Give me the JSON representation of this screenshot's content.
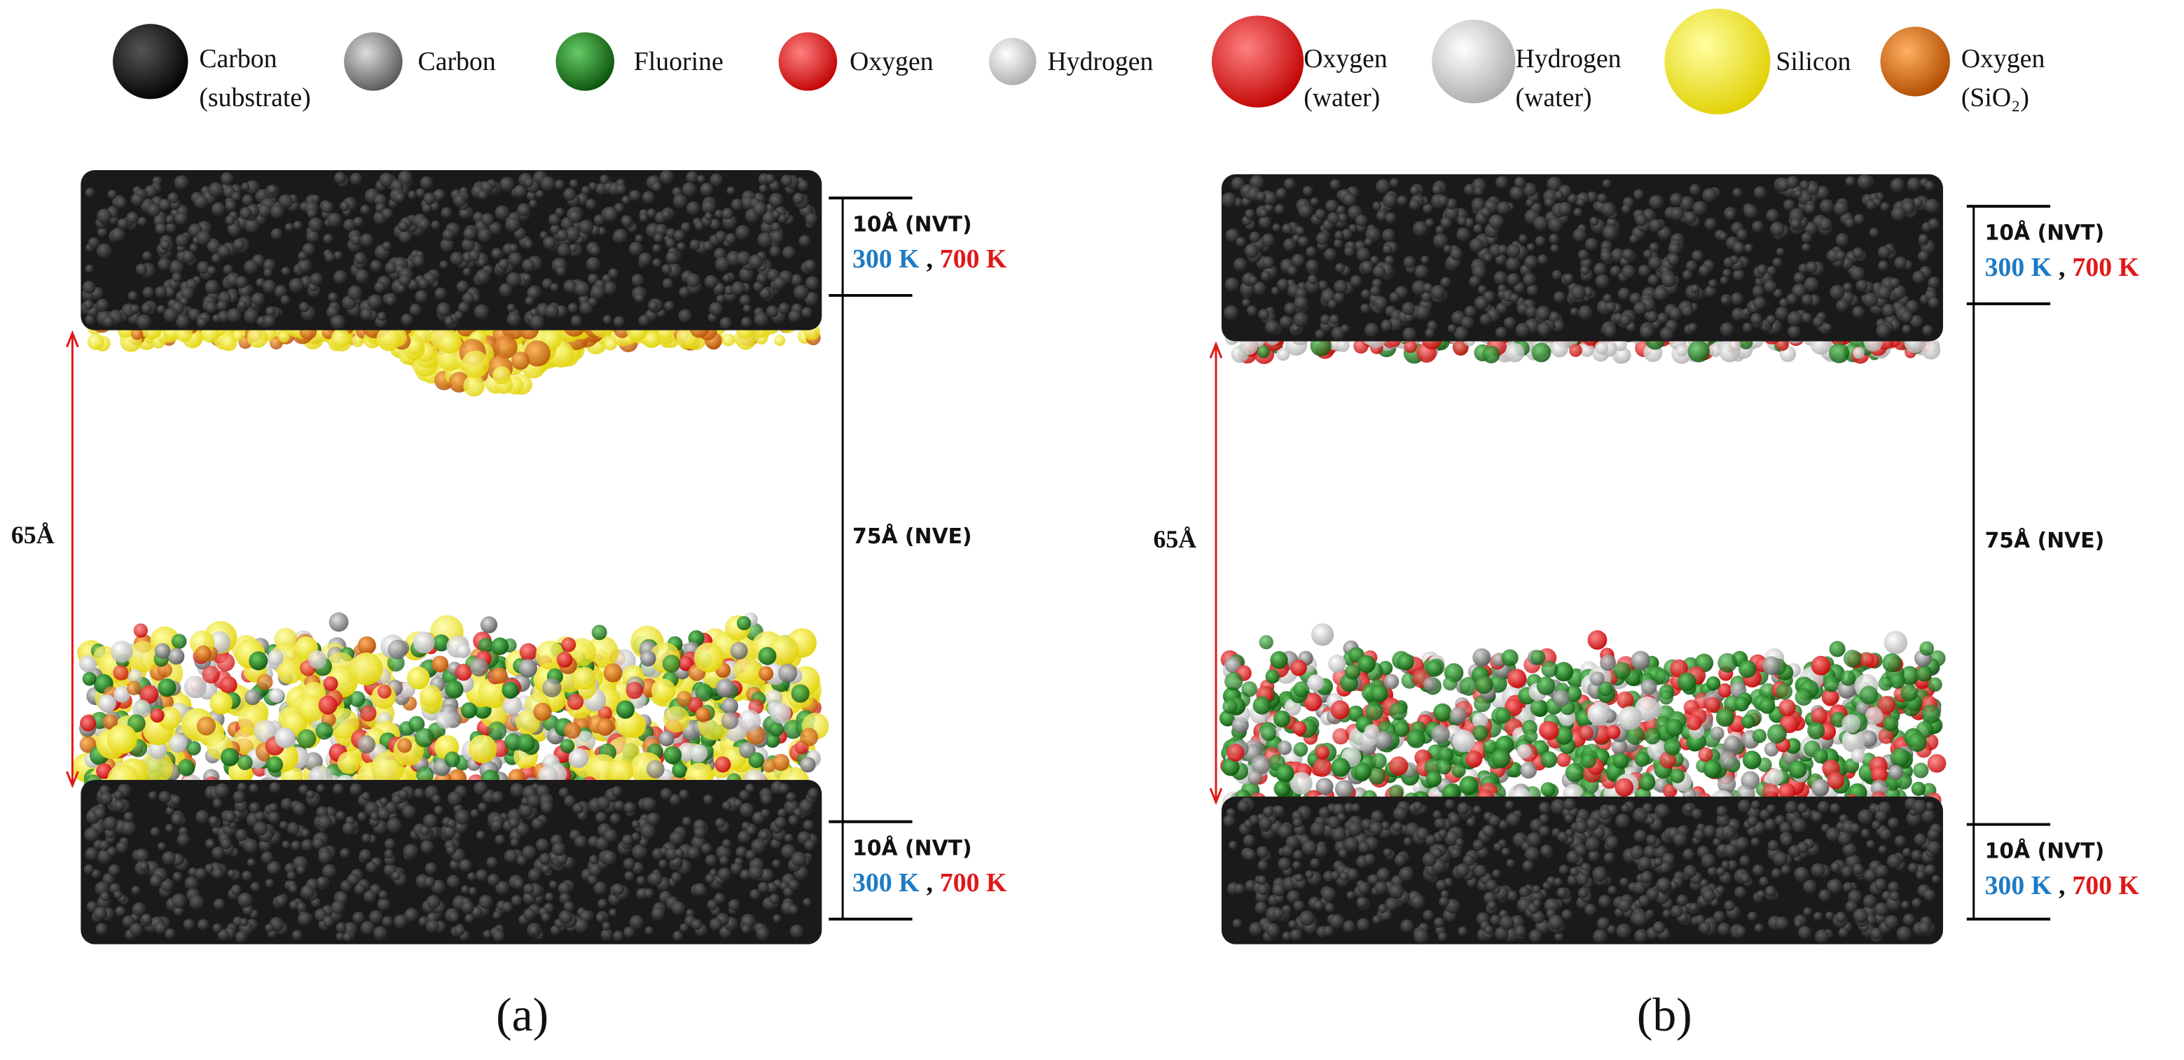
{
  "legend": [
    {
      "label": [
        "Carbon",
        "(substrate)"
      ]
    },
    {
      "label": [
        "Carbon"
      ]
    },
    {
      "label": [
        "Fluorine"
      ]
    },
    {
      "label": [
        "Oxygen"
      ]
    },
    {
      "label": [
        "Hydrogen"
      ]
    },
    {
      "label": [
        "Oxygen",
        "(water)"
      ]
    },
    {
      "label": [
        "Hydrogen",
        "(water)"
      ]
    },
    {
      "label": [
        "Silicon"
      ]
    },
    {
      "label": [
        "Oxygen",
        "(SiO₂)"
      ]
    }
  ],
  "panels": [
    {
      "label": "(a)",
      "gap": "65Å",
      "middle": "75Å (NVE)",
      "top": {
        "thickness": "10Å (NVT)",
        "temp_low": "300 K",
        "separator": ",",
        "temp_high": "700 K"
      },
      "bottom": {
        "thickness": "10Å (NVT)",
        "temp_low": "300 K",
        "separator": ",",
        "temp_high": "700 K"
      }
    },
    {
      "label": "(b)",
      "gap": "65Å",
      "middle": "75Å (NVE)",
      "top": {
        "thickness": "10Å (NVT)",
        "temp_low": "300 K",
        "separator": ",",
        "temp_high": "700 K"
      },
      "bottom": {
        "thickness": "10Å (NVT)",
        "temp_low": "300 K",
        "separator": ",",
        "temp_high": "700 K"
      }
    }
  ]
}
